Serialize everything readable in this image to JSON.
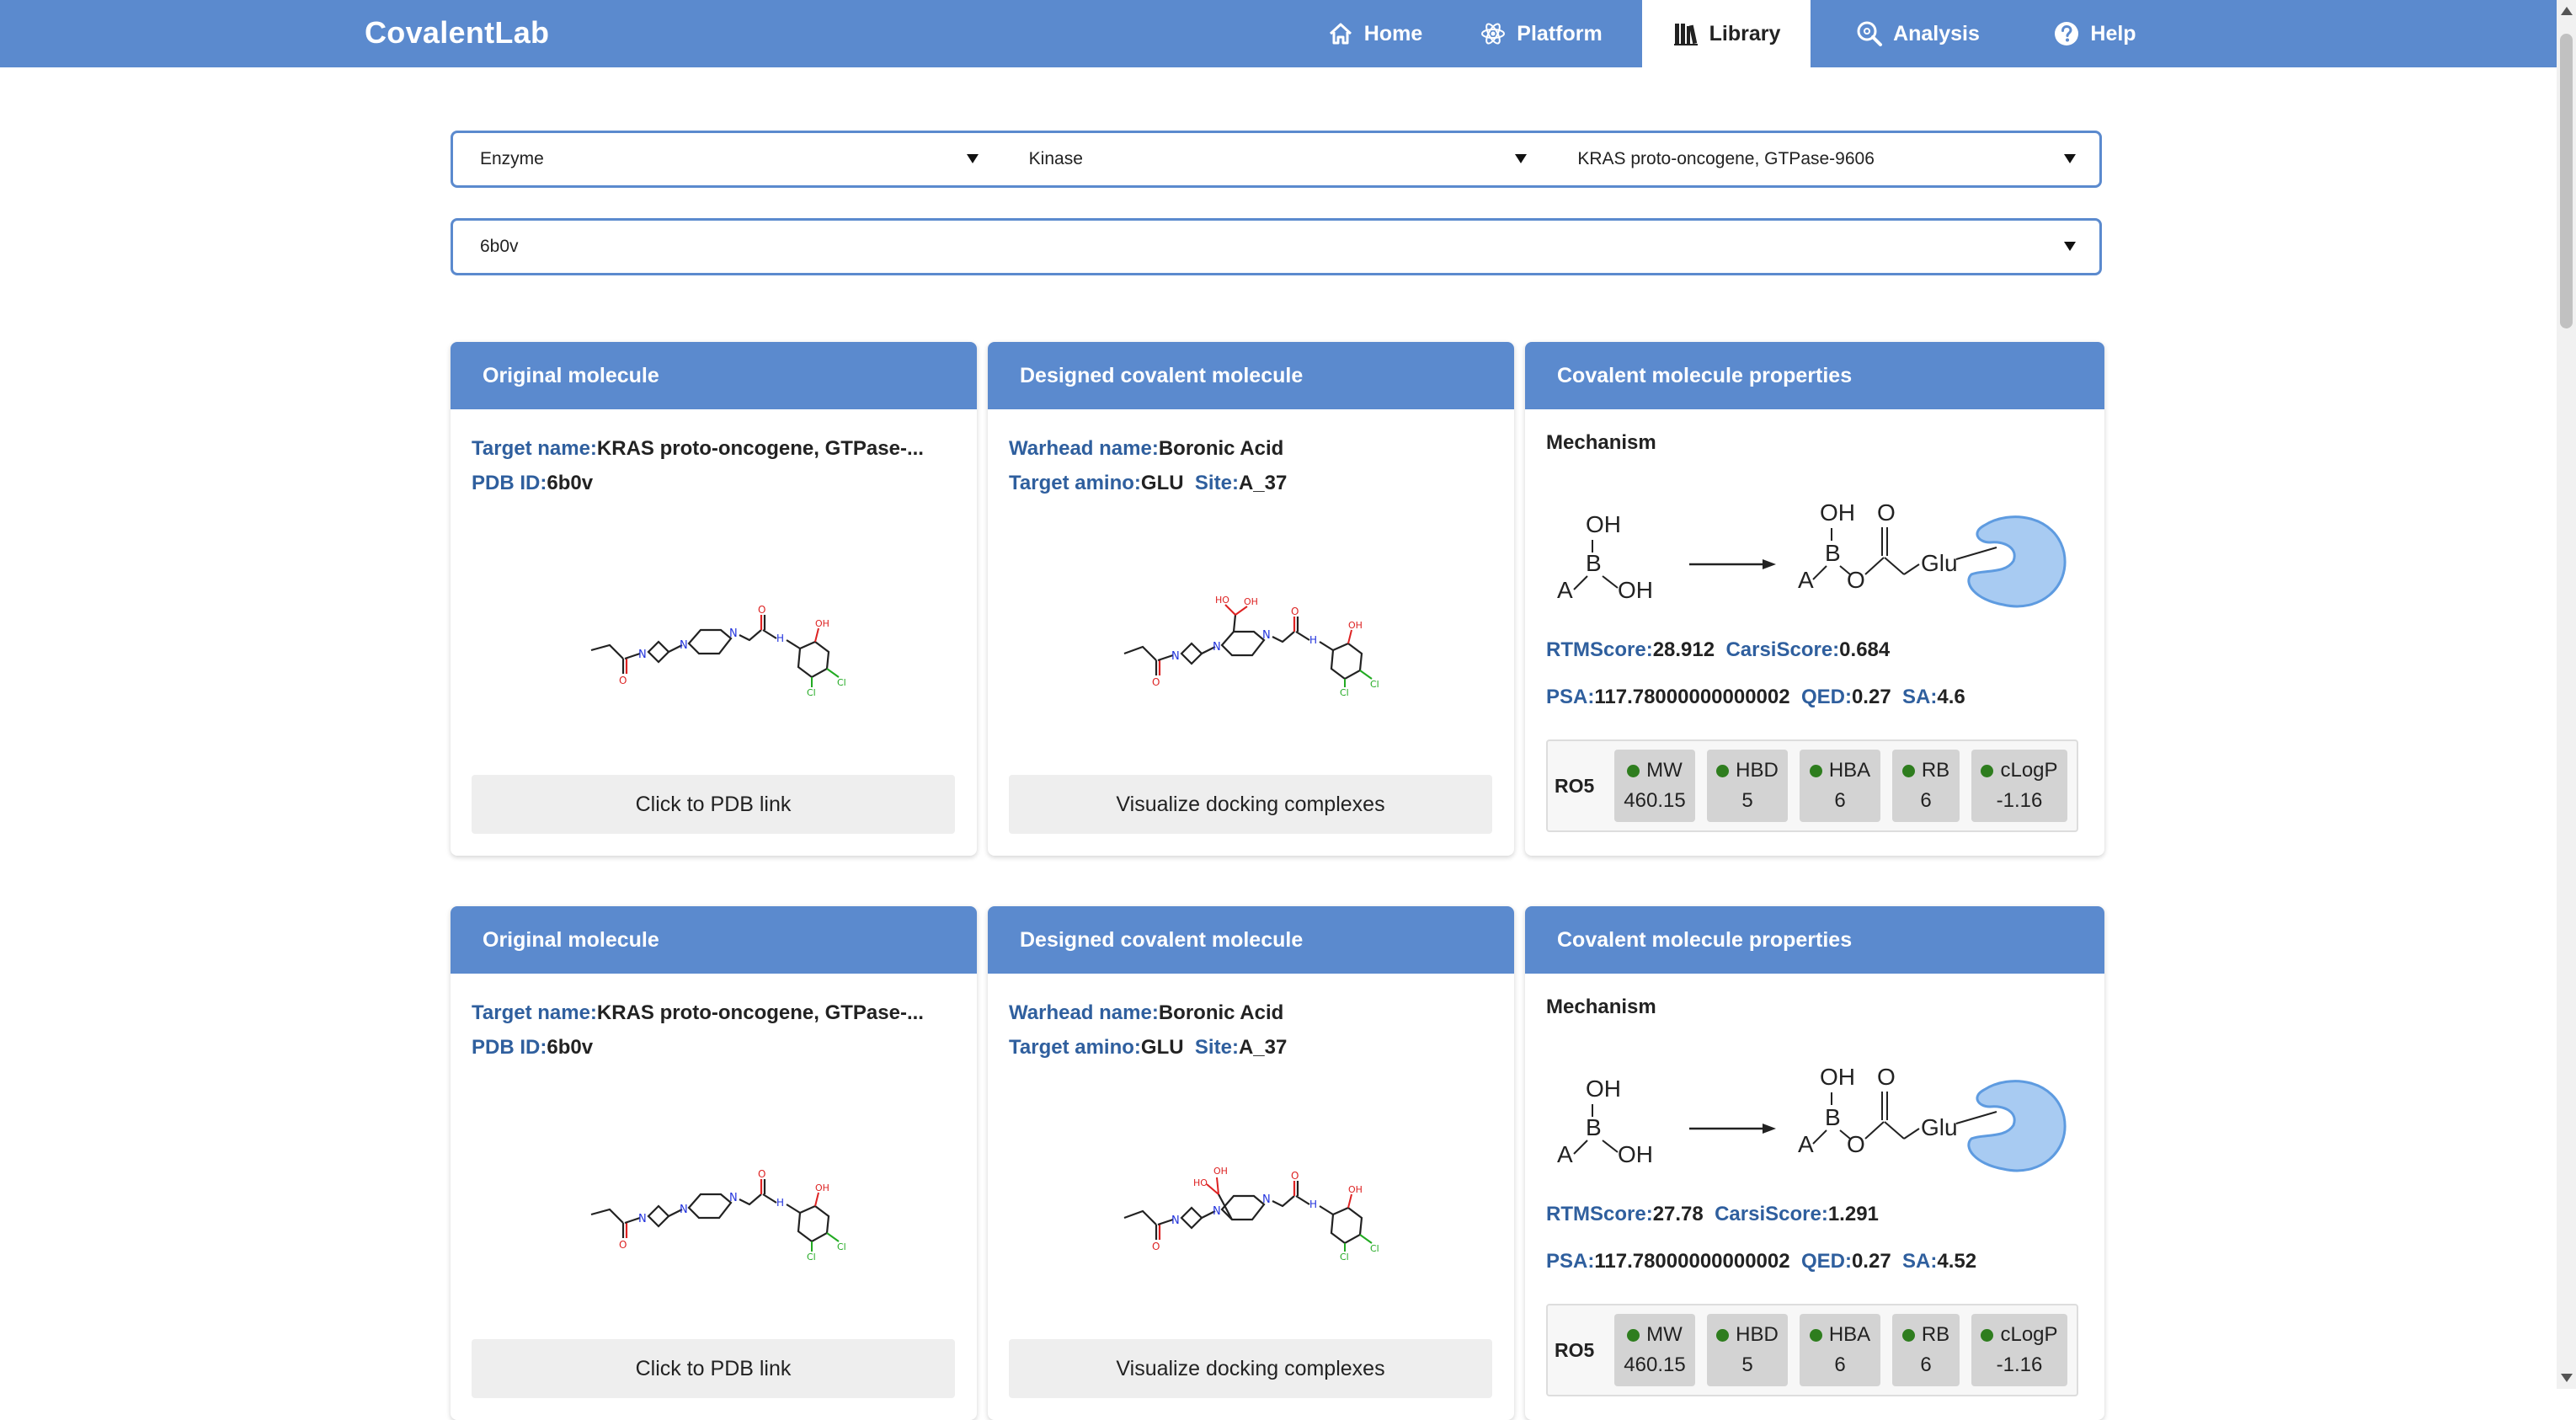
{
  "app": {
    "brand": "CovalentLab"
  },
  "nav": [
    {
      "label": "Home",
      "icon": "home-icon"
    },
    {
      "label": "Platform",
      "icon": "atom-icon"
    },
    {
      "label": "Library",
      "icon": "library-icon",
      "active": true
    },
    {
      "label": "Analysis",
      "icon": "analysis-search-icon"
    },
    {
      "label": "Help",
      "icon": "help-icon"
    }
  ],
  "filters": {
    "category": "Enzyme",
    "family": "Kinase",
    "target": "KRAS proto-oncogene, GTPase-9606",
    "pdb": "6b0v"
  },
  "colors": {
    "accent": "#5b8ace",
    "label": "#2f5f9e",
    "dot": "#2e7d1e",
    "protein": "#a8cbf2"
  },
  "results": [
    {
      "original": {
        "header": "Original molecule",
        "target_key": "Target name:",
        "target_val": "KRAS proto-oncogene, GTPase-...",
        "pdb_key": "PDB ID:",
        "pdb_val": "6b0v",
        "button": "Click to PDB link"
      },
      "designed": {
        "header": "Designed covalent molecule",
        "warhead_key": "Warhead name:",
        "warhead_val": "Boronic Acid",
        "amino_key": "Target amino:",
        "amino_val": "GLU",
        "site_key": "Site:",
        "site_val": "A_37",
        "button": "Visualize docking complexes"
      },
      "props": {
        "header": "Covalent molecule properties",
        "mechanism_label": "Mechanism",
        "rtm_key": "RTMScore:",
        "rtm_val": "28.912",
        "carsi_key": "CarsiScore:",
        "carsi_val": "0.684",
        "psa_key": "PSA:",
        "psa_val": "117.78000000000002",
        "qed_key": "QED:",
        "qed_val": "0.27",
        "sa_key": "SA:",
        "sa_val": "4.6",
        "ro5_label": "RO5",
        "ro5": [
          {
            "name": "MW",
            "value": "460.15"
          },
          {
            "name": "HBD",
            "value": "5"
          },
          {
            "name": "HBA",
            "value": "6"
          },
          {
            "name": "RB",
            "value": "6"
          },
          {
            "name": "cLogP",
            "value": "-1.16"
          }
        ]
      }
    },
    {
      "original": {
        "header": "Original molecule",
        "target_key": "Target name:",
        "target_val": "KRAS proto-oncogene, GTPase-...",
        "pdb_key": "PDB ID:",
        "pdb_val": "6b0v",
        "button": "Click to PDB link"
      },
      "designed": {
        "header": "Designed covalent molecule",
        "warhead_key": "Warhead name:",
        "warhead_val": "Boronic Acid",
        "amino_key": "Target amino:",
        "amino_val": "GLU",
        "site_key": "Site:",
        "site_val": "A_37",
        "button": "Visualize docking complexes"
      },
      "props": {
        "header": "Covalent molecule properties",
        "mechanism_label": "Mechanism",
        "rtm_key": "RTMScore:",
        "rtm_val": "27.78",
        "carsi_key": "CarsiScore:",
        "carsi_val": "1.291",
        "psa_key": "PSA:",
        "psa_val": "117.78000000000002",
        "qed_key": "QED:",
        "qed_val": "0.27",
        "sa_key": "SA:",
        "sa_val": "4.52",
        "ro5_label": "RO5",
        "ro5": [
          {
            "name": "MW",
            "value": "460.15"
          },
          {
            "name": "HBD",
            "value": "5"
          },
          {
            "name": "HBA",
            "value": "6"
          },
          {
            "name": "RB",
            "value": "6"
          },
          {
            "name": "cLogP",
            "value": "-1.16"
          }
        ]
      }
    }
  ],
  "mechanism_scheme": {
    "reactant": [
      "OH",
      "B",
      "A",
      "OH"
    ],
    "product": [
      "OH",
      "O",
      "B",
      "A",
      "O",
      "Glu"
    ]
  }
}
